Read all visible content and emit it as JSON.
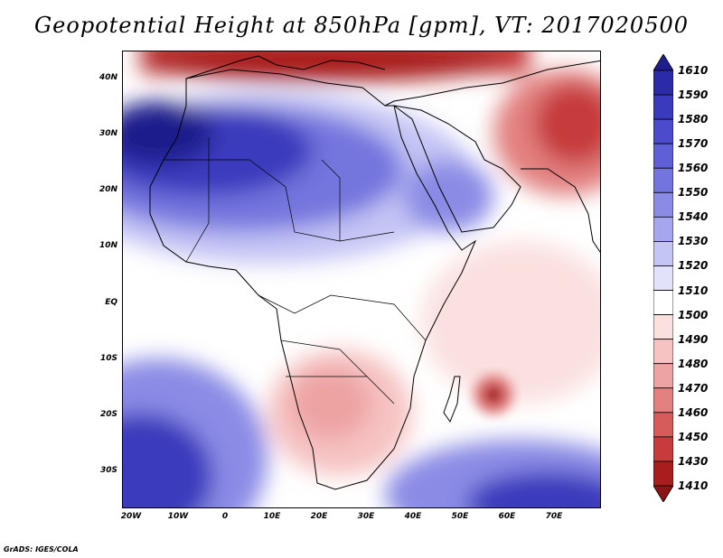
{
  "title": "Geopotential Height at 850hPa [gpm], VT: 2017020500",
  "credit": "GrADS: IGES/COLA",
  "chart_data": {
    "type": "heatmap",
    "variable": "Geopotential Height",
    "level": "850hPa",
    "units": "gpm",
    "valid_time": "2017020500",
    "lon_range": [
      -22,
      80
    ],
    "lat_range": [
      -37,
      45
    ],
    "lat_ticks": [
      "40N",
      "30N",
      "20N",
      "10N",
      "EQ",
      "10S",
      "20S",
      "30S"
    ],
    "lat_values": [
      40,
      30,
      20,
      10,
      0,
      -10,
      -20,
      -30
    ],
    "lon_ticks": [
      "20W",
      "10W",
      "0",
      "10E",
      "20E",
      "30E",
      "40E",
      "50E",
      "60E",
      "70E"
    ],
    "lon_values": [
      -20,
      -10,
      0,
      10,
      20,
      30,
      40,
      50,
      60,
      70
    ],
    "colorbar": {
      "labels": [
        "1610",
        "1590",
        "1580",
        "1570",
        "1560",
        "1550",
        "1540",
        "1530",
        "1520",
        "1510",
        "1500",
        "1490",
        "1480",
        "1470",
        "1460",
        "1450",
        "1430",
        "1410"
      ],
      "colors": [
        "#1e1e8c",
        "#2b2ba8",
        "#3a3abd",
        "#4b4bcc",
        "#5f5fd6",
        "#7474de",
        "#8b8be6",
        "#a6a6ee",
        "#c4c4f5",
        "#e2e2fb",
        "#ffffff",
        "#fbe0e0",
        "#f6c2c2",
        "#eea3a3",
        "#e38080",
        "#d65c5c",
        "#c63b3b",
        "#a81e1e",
        "#8c1414"
      ]
    }
  }
}
